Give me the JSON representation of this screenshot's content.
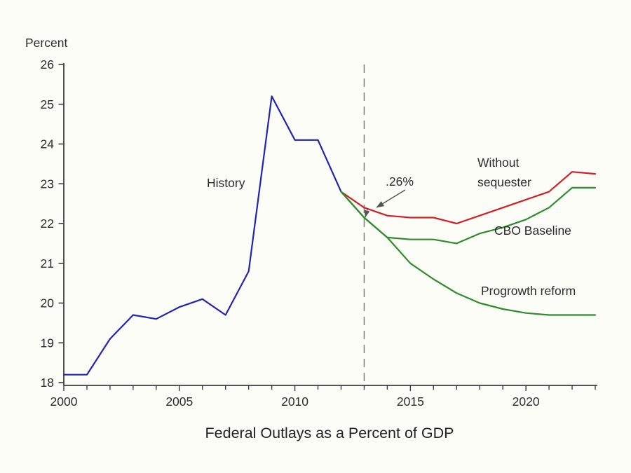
{
  "chart_data": {
    "type": "line",
    "title": "Federal Outlays as a Percent of GDP",
    "ylabel": "Percent",
    "xlabel": "",
    "xlim": [
      2000,
      2023
    ],
    "ylim": [
      18,
      26
    ],
    "y_ticks": [
      18,
      19,
      20,
      21,
      22,
      23,
      24,
      25,
      26
    ],
    "x_major_ticks": [
      2000,
      2005,
      2010,
      2015,
      2020
    ],
    "x_minor_tick_step": 1,
    "grid": false,
    "legend_position": "inline-annotations",
    "vline_year": 2013,
    "series": [
      {
        "name": "History",
        "color": "#2323b2",
        "start_year": 2000,
        "values": [
          18.2,
          18.2,
          19.1,
          19.7,
          19.6,
          19.9,
          20.1,
          19.7,
          20.8,
          25.2,
          24.1,
          24.1,
          22.8
        ]
      },
      {
        "name": "Without sequester",
        "color": "#cc2127",
        "start_year": 2012,
        "values": [
          22.8,
          22.4,
          22.2,
          22.15,
          22.15,
          22.0,
          22.2,
          22.4,
          22.6,
          22.8,
          23.3,
          23.25
        ]
      },
      {
        "name": "CBO Baseline",
        "color": "#2e8b2e",
        "start_year": 2012,
        "values": [
          22.8,
          22.15,
          21.65,
          21.6,
          21.6,
          21.5,
          21.75,
          21.9,
          22.1,
          22.4,
          22.9,
          22.9
        ]
      },
      {
        "name": "Progrowth reform",
        "color": "#2e8b2e",
        "start_year": 2012,
        "values": [
          22.8,
          22.15,
          21.65,
          21.0,
          20.6,
          20.25,
          20.0,
          19.85,
          19.75,
          19.7,
          19.7,
          19.7
        ]
      }
    ],
    "annotations": {
      "history": "History",
      "without_sequester_line1": "Without",
      "without_sequester_line2": "sequester",
      "cbo_baseline": "CBO Baseline",
      "progrowth": "Progrowth reform",
      "gap": ".26%"
    }
  },
  "colors": {
    "axis": "#3c3c3c",
    "dashed_line": "#7d7d7d",
    "arrow": "#555555",
    "text": "#2b2b2b",
    "background": "#fdfdf8"
  }
}
